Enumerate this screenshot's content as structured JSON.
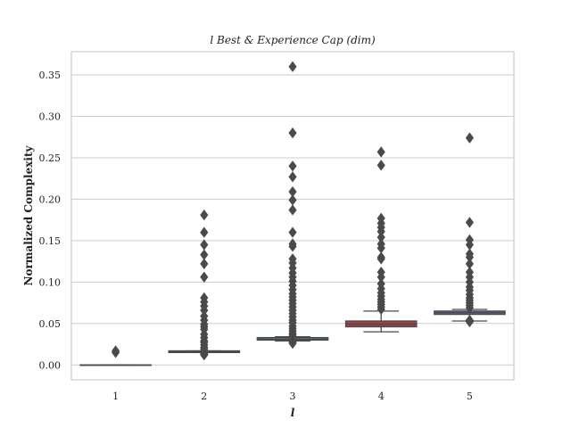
{
  "chart_data": {
    "type": "box",
    "title": "l Best & Experience Cap (dim)",
    "xlabel": "l",
    "ylabel": "Normalized Complexity",
    "categories": [
      "1",
      "2",
      "3",
      "4",
      "5"
    ],
    "ylim": [
      -0.018,
      0.378
    ],
    "yticks": [
      0.0,
      0.05,
      0.1,
      0.15,
      0.2,
      0.25,
      0.3,
      0.35
    ],
    "ytick_labels": [
      "0.00",
      "0.05",
      "0.10",
      "0.15",
      "0.20",
      "0.25",
      "0.30",
      "0.35"
    ],
    "grid": true,
    "legend": "none",
    "boxes": [
      {
        "category": "1",
        "whisker_low": 0.0,
        "q1": 0.0,
        "median": 0.0,
        "q3": 0.0,
        "whisker_high": 0.0,
        "color": "#3a66b0",
        "outliers": [
          0.015,
          0.017
        ]
      },
      {
        "category": "2",
        "whisker_low": 0.015,
        "q1": 0.015,
        "median": 0.016,
        "q3": 0.017,
        "whisker_high": 0.017,
        "color": "#dd8452",
        "outliers": [
          0.012,
          0.013,
          0.014,
          0.019,
          0.021,
          0.024,
          0.027,
          0.029,
          0.033,
          0.037,
          0.043,
          0.046,
          0.049,
          0.054,
          0.059,
          0.066,
          0.071,
          0.076,
          0.081,
          0.106,
          0.122,
          0.133,
          0.145,
          0.16,
          0.181
        ]
      },
      {
        "category": "3",
        "whisker_low": 0.029,
        "q1": 0.03,
        "median": 0.031,
        "q3": 0.033,
        "whisker_high": 0.034,
        "color": "#55a868",
        "outliers": [
          0.026,
          0.027,
          0.028,
          0.036,
          0.038,
          0.041,
          0.044,
          0.047,
          0.051,
          0.054,
          0.058,
          0.062,
          0.066,
          0.07,
          0.074,
          0.078,
          0.082,
          0.086,
          0.091,
          0.096,
          0.101,
          0.106,
          0.111,
          0.117,
          0.123,
          0.128,
          0.143,
          0.146,
          0.16,
          0.187,
          0.199,
          0.209,
          0.227,
          0.24,
          0.28,
          0.36
        ]
      },
      {
        "category": "4",
        "whisker_low": 0.04,
        "q1": 0.046,
        "median": 0.049,
        "q3": 0.053,
        "whisker_high": 0.065,
        "color": "#c44e52",
        "outliers": [
          0.067,
          0.07,
          0.073,
          0.076,
          0.079,
          0.083,
          0.087,
          0.092,
          0.098,
          0.106,
          0.112,
          0.128,
          0.13,
          0.141,
          0.146,
          0.154,
          0.161,
          0.166,
          0.171,
          0.177,
          0.241,
          0.257
        ]
      },
      {
        "category": "5",
        "whisker_low": 0.053,
        "q1": 0.061,
        "median": 0.063,
        "q3": 0.065,
        "whisker_high": 0.067,
        "color": "#8172b3",
        "outliers": [
          0.052,
          0.053,
          0.054,
          0.069,
          0.072,
          0.075,
          0.078,
          0.081,
          0.085,
          0.09,
          0.094,
          0.1,
          0.106,
          0.112,
          0.122,
          0.13,
          0.134,
          0.145,
          0.151,
          0.172,
          0.274
        ]
      }
    ]
  }
}
